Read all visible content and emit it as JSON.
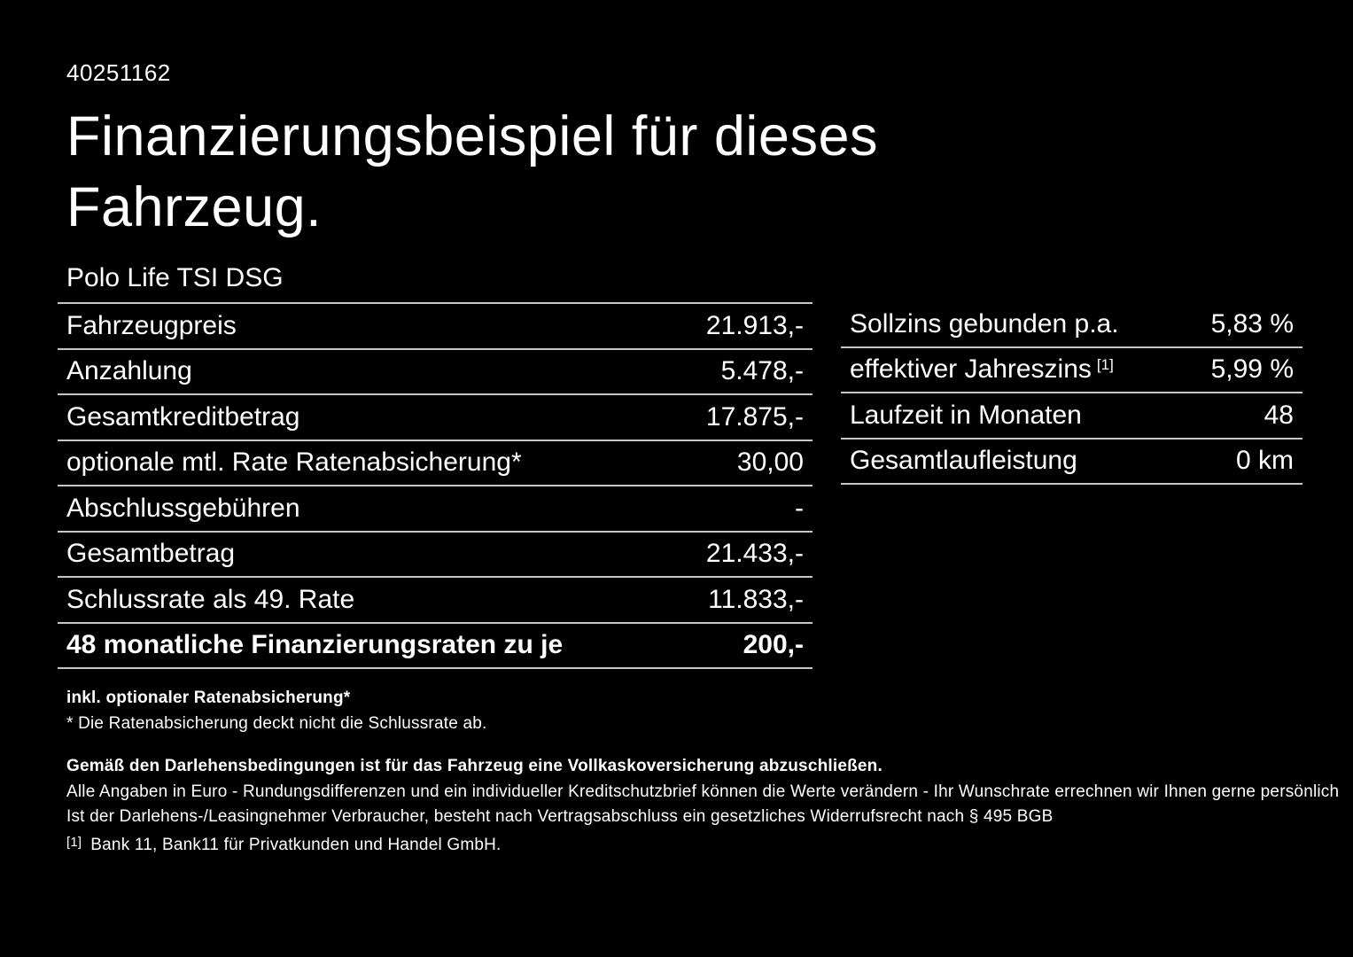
{
  "page": {
    "id_number": "40251162",
    "title_line1": "Finanzierungsbeispiel für dieses",
    "title_line2": "Fahrzeug.",
    "model": "Polo Life TSI DSG"
  },
  "left_table": {
    "rows": [
      {
        "label": "Fahrzeugpreis",
        "value": "21.913,-"
      },
      {
        "label": "Anzahlung",
        "value": "5.478,-"
      },
      {
        "label": "Gesamtkreditbetrag",
        "value": "17.875,-"
      },
      {
        "label": "optionale mtl. Rate Ratenabsicherung*",
        "value": "30,00"
      },
      {
        "label": "Abschlussgebühren",
        "value": "-"
      },
      {
        "label": "Gesamtbetrag",
        "value": "21.433,-"
      },
      {
        "label": "Schlussrate als 49. Rate",
        "value": "11.833,-"
      },
      {
        "label": "48 monatliche Finanzierungsraten zu je",
        "value": "200,-"
      }
    ]
  },
  "right_table": {
    "rows": [
      {
        "label": "Sollzins gebunden p.a.",
        "sup": "",
        "value": "5,83 %"
      },
      {
        "label": "effektiver Jahreszins",
        "sup": "[1]",
        "value": "5,99 %"
      },
      {
        "label": "Laufzeit in Monaten",
        "sup": "",
        "value": "48"
      },
      {
        "label": "Gesamtlaufleistung",
        "sup": "",
        "value": "0 km"
      }
    ]
  },
  "footnotes": {
    "rate_protection_bold": "inkl. optionaler Ratenabsicherung*",
    "rate_protection_note": "* Die Ratenabsicherung deckt nicht die Schlussrate ab.",
    "insurance_requirement": "Gemäß den Darlehensbedingungen ist für das Fahrzeug eine Vollkaskoversicherung abzuschließen.",
    "disclaimer_line1": "Alle Angaben in Euro - Rundungsdifferenzen und ein individueller Kreditschutzbrief können die Werte verändern - Ihr Wunschrate errechnen wir Ihnen gerne persönlich",
    "disclaimer_line2": "Ist der Darlehens-/Leasingnehmer Verbraucher, besteht nach Vertragsabschluss ein gesetzliches Widerrufsrecht nach § 495 BGB",
    "bank_ref_sup": "[1]",
    "bank_ref": "Bank 11, Bank11 für Privatkunden und Handel GmbH."
  },
  "colors": {
    "background": "#000000",
    "text": "#ffffff",
    "divider": "#c6c6c6"
  }
}
